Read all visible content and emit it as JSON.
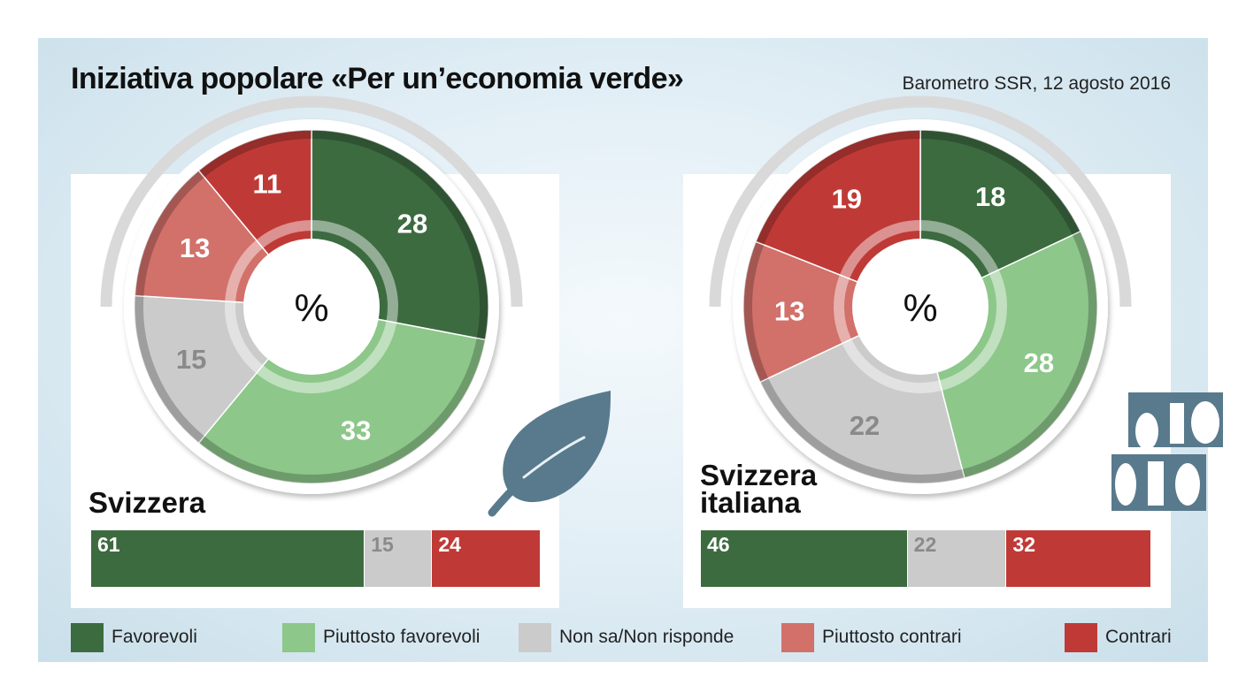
{
  "title": "Iniziativa popolare «Per un’economia verde»",
  "source": "Barometro SSR, 12 agosto 2016",
  "colors": {
    "favorevoli": "#3d6b40",
    "piuttosto_favorevoli": "#8dc78a",
    "non_sa": "#cbcbcb",
    "piuttosto_contrari": "#d2706a",
    "contrari": "#bf3a36"
  },
  "legend": [
    {
      "label": "Favorevoli",
      "color": "#3d6b40"
    },
    {
      "label": "Piuttosto favorevoli",
      "color": "#8dc78a"
    },
    {
      "label": "Non sa/Non risponde",
      "color": "#cbcbcb"
    },
    {
      "label": "Piuttosto contrari",
      "color": "#d2706a"
    },
    {
      "label": "Contrari",
      "color": "#bf3a36"
    }
  ],
  "regions": [
    {
      "name": "Svizzera",
      "unit": "%"
    },
    {
      "name": "Svizzera\nitaliana",
      "unit": "%"
    }
  ],
  "icons": [
    "leaf-icon",
    "tv-ssr-logo-icon"
  ],
  "chart_data": [
    {
      "type": "pie",
      "region": "Svizzera",
      "unit": "%",
      "categories": [
        "Favorevoli",
        "Piuttosto favorevoli",
        "Non sa/Non risponde",
        "Piuttosto contrari",
        "Contrari"
      ],
      "values": [
        28,
        33,
        15,
        13,
        11
      ],
      "summary_bar": {
        "categories": [
          "Favorevoli",
          "Non sa/Non risponde",
          "Contrari"
        ],
        "values": [
          61,
          15,
          24
        ]
      }
    },
    {
      "type": "pie",
      "region": "Svizzera italiana",
      "unit": "%",
      "categories": [
        "Favorevoli",
        "Piuttosto favorevoli",
        "Non sa/Non risponde",
        "Piuttosto contrari",
        "Contrari"
      ],
      "values": [
        18,
        28,
        22,
        13,
        19
      ],
      "summary_bar": {
        "categories": [
          "Favorevoli",
          "Non sa/Non risponde",
          "Contrari"
        ],
        "values": [
          46,
          22,
          32
        ]
      }
    }
  ]
}
